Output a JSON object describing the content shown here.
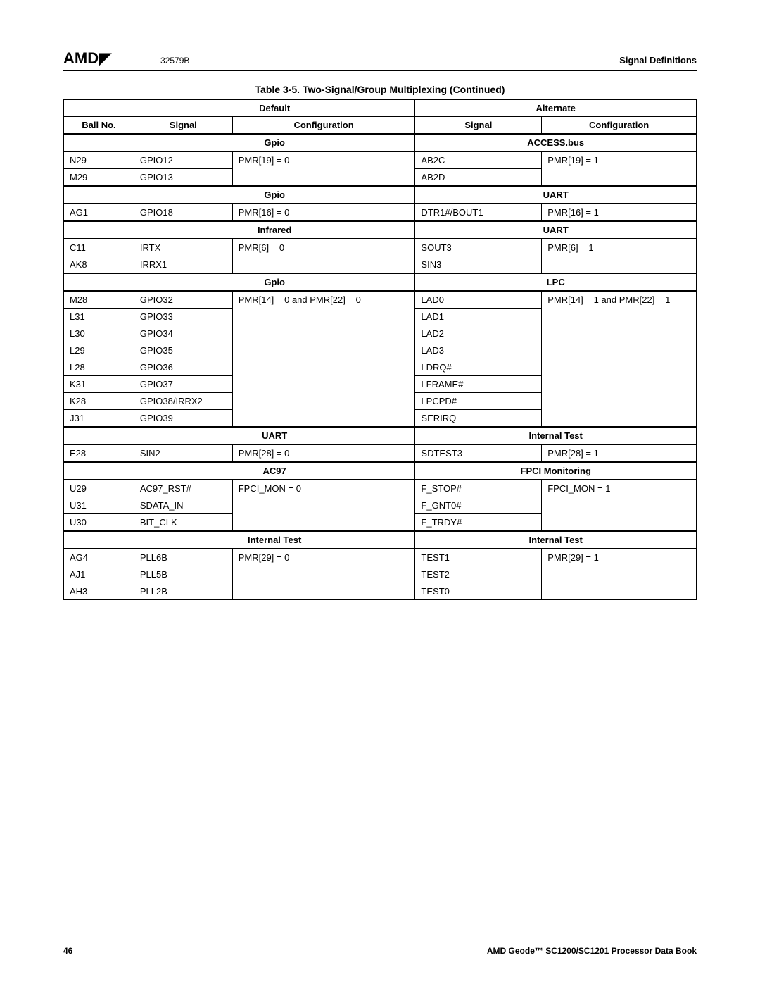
{
  "header": {
    "logo_text": "AMD",
    "doc_code": "32579B",
    "section": "Signal Definitions"
  },
  "table_title": "Table 3-5.  Two-Signal/Group Multiplexing  (Continued)",
  "col_headers": {
    "default": "Default",
    "alternate": "Alternate",
    "ball_no": "Ball No.",
    "signal": "Signal",
    "configuration": "Configuration"
  },
  "sections": [
    {
      "default_group": "Gpio",
      "alternate_group": "ACCESS.bus",
      "rows": [
        {
          "ball": "N29",
          "sig1": "GPIO12",
          "cfg1": "PMR[19] = 0",
          "sig2": "AB2C",
          "cfg2": "PMR[19] = 1",
          "cfg1_first": true,
          "cfg2_first": true
        },
        {
          "ball": "M29",
          "sig1": "GPIO13",
          "cfg1": "",
          "sig2": "AB2D",
          "cfg2": ""
        }
      ]
    },
    {
      "default_group": "Gpio",
      "alternate_group": "UART",
      "rows": [
        {
          "ball": "AG1",
          "sig1": "GPIO18",
          "cfg1": "PMR[16] = 0",
          "sig2": "DTR1#/BOUT1",
          "cfg2": "PMR[16] = 1",
          "cfg1_first": true,
          "cfg2_first": true
        }
      ]
    },
    {
      "default_group": "Infrared",
      "alternate_group": "UART",
      "rows": [
        {
          "ball": "C11",
          "sig1": "IRTX",
          "cfg1": "PMR[6] = 0",
          "sig2": "SOUT3",
          "cfg2": "PMR[6] = 1",
          "cfg1_first": true,
          "cfg2_first": true
        },
        {
          "ball": "AK8",
          "sig1": "IRRX1",
          "cfg1": "",
          "sig2": "SIN3",
          "cfg2": ""
        }
      ]
    },
    {
      "default_group": "Gpio",
      "alternate_group": "LPC",
      "rows": [
        {
          "ball": "M28",
          "sig1": "GPIO32",
          "cfg1": "PMR[14] = 0 and PMR[22] = 0",
          "sig2": "LAD0",
          "cfg2": "PMR[14] = 1 and PMR[22] = 1",
          "cfg1_first": true,
          "cfg2_first": true
        },
        {
          "ball": "L31",
          "sig1": "GPIO33",
          "cfg1": "",
          "sig2": "LAD1",
          "cfg2": ""
        },
        {
          "ball": "L30",
          "sig1": "GPIO34",
          "cfg1": "",
          "sig2": "LAD2",
          "cfg2": ""
        },
        {
          "ball": "L29",
          "sig1": "GPIO35",
          "cfg1": "",
          "sig2": "LAD3",
          "cfg2": ""
        },
        {
          "ball": "L28",
          "sig1": "GPIO36",
          "cfg1": "",
          "sig2": "LDRQ#",
          "cfg2": ""
        },
        {
          "ball": "K31",
          "sig1": "GPIO37",
          "cfg1": "",
          "sig2": "LFRAME#",
          "cfg2": ""
        },
        {
          "ball": "K28",
          "sig1": "GPIO38/IRRX2",
          "cfg1": "",
          "sig2": "LPCPD#",
          "cfg2": ""
        },
        {
          "ball": "J31",
          "sig1": "GPIO39",
          "cfg1": "",
          "sig2": "SERIRQ",
          "cfg2": ""
        }
      ]
    },
    {
      "default_group": "UART",
      "alternate_group": "Internal Test",
      "rows": [
        {
          "ball": "E28",
          "sig1": "SIN2",
          "cfg1": "PMR[28] = 0",
          "sig2": "SDTEST3",
          "cfg2": "PMR[28] = 1",
          "cfg1_first": true,
          "cfg2_first": true
        }
      ]
    },
    {
      "default_group": "AC97",
      "alternate_group": "FPCI Monitoring",
      "rows": [
        {
          "ball": "U29",
          "sig1": "AC97_RST#",
          "cfg1": "FPCI_MON = 0",
          "sig2": "F_STOP#",
          "cfg2": "FPCI_MON = 1",
          "cfg1_first": true,
          "cfg2_first": true
        },
        {
          "ball": "U31",
          "sig1": "SDATA_IN",
          "cfg1": "",
          "sig2": "F_GNT0#",
          "cfg2": ""
        },
        {
          "ball": "U30",
          "sig1": "BIT_CLK",
          "cfg1": "",
          "sig2": "F_TRDY#",
          "cfg2": ""
        }
      ]
    },
    {
      "default_group": "Internal Test",
      "alternate_group": "Internal Test",
      "rows": [
        {
          "ball": "AG4",
          "sig1": "PLL6B",
          "cfg1": "PMR[29] = 0",
          "sig2": "TEST1",
          "cfg2": "PMR[29] = 1",
          "cfg1_first": true,
          "cfg2_first": true
        },
        {
          "ball": "AJ1",
          "sig1": "PLL5B",
          "cfg1": "",
          "sig2": "TEST2",
          "cfg2": ""
        },
        {
          "ball": "AH3",
          "sig1": "PLL2B",
          "cfg1": "",
          "sig2": "TEST0",
          "cfg2": ""
        }
      ]
    }
  ],
  "footer": {
    "page": "46",
    "book": "AMD Geode™ SC1200/SC1201 Processor Data Book"
  }
}
